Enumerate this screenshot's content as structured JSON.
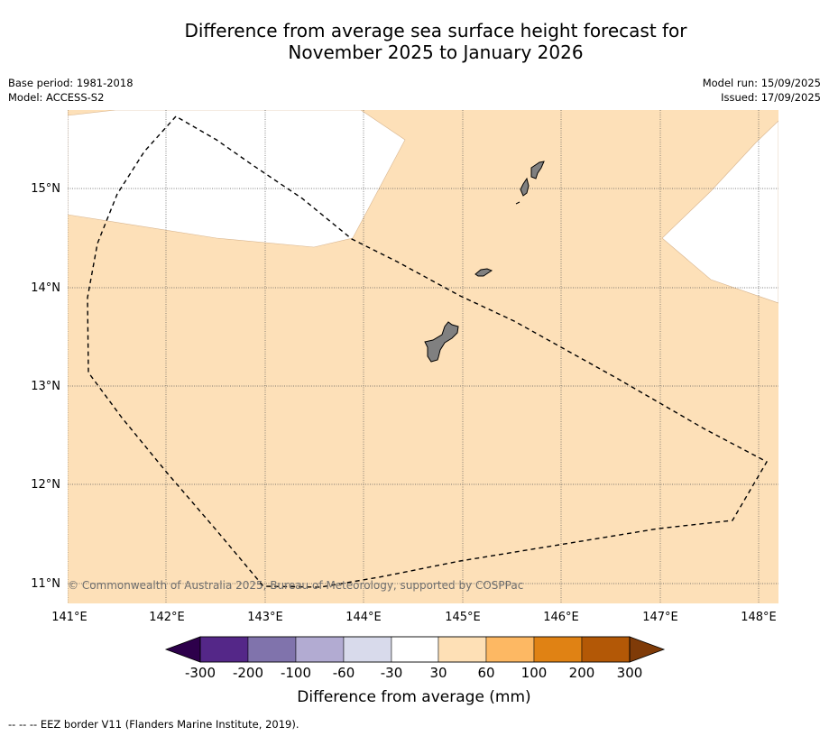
{
  "title_line1": "Difference from average sea surface height forecast for",
  "title_line2": "November 2025 to January 2026",
  "base_period": "Base period: 1981-2018",
  "model": "Model: ACCESS-S2",
  "model_run": "Model run: 15/09/2025",
  "issued": "Issued: 17/09/2025",
  "map": {
    "lat_labels": [
      "15°N",
      "14°N",
      "13°N",
      "12°N",
      "11°N"
    ],
    "lon_labels": [
      "141°E",
      "142°E",
      "143°E",
      "144°E",
      "145°E",
      "146°E",
      "147°E",
      "148°E"
    ],
    "copyright": "© Commonwealth of Australia 2025, Bureau of Meteorology, supported by COSPPac",
    "colors": {
      "ocean_anomaly": "#fde0b8",
      "land": "#808080",
      "missing": "#ffffff"
    }
  },
  "legend": {
    "title": "Difference from average (mm)",
    "tick_labels": [
      "-300",
      "-200",
      "-100",
      "-60",
      "-30",
      "30",
      "60",
      "100",
      "200",
      "300"
    ],
    "colors": [
      "#2d004b",
      "#542788",
      "#8073ac",
      "#b2abd2",
      "#d8daeb",
      "#ffffff",
      "#fee0b6",
      "#fdb863",
      "#e08214",
      "#b35806",
      "#7f3b08"
    ]
  },
  "footer": "--  --  -- EEZ border V11 (Flanders Marine Institute, 2019)."
}
